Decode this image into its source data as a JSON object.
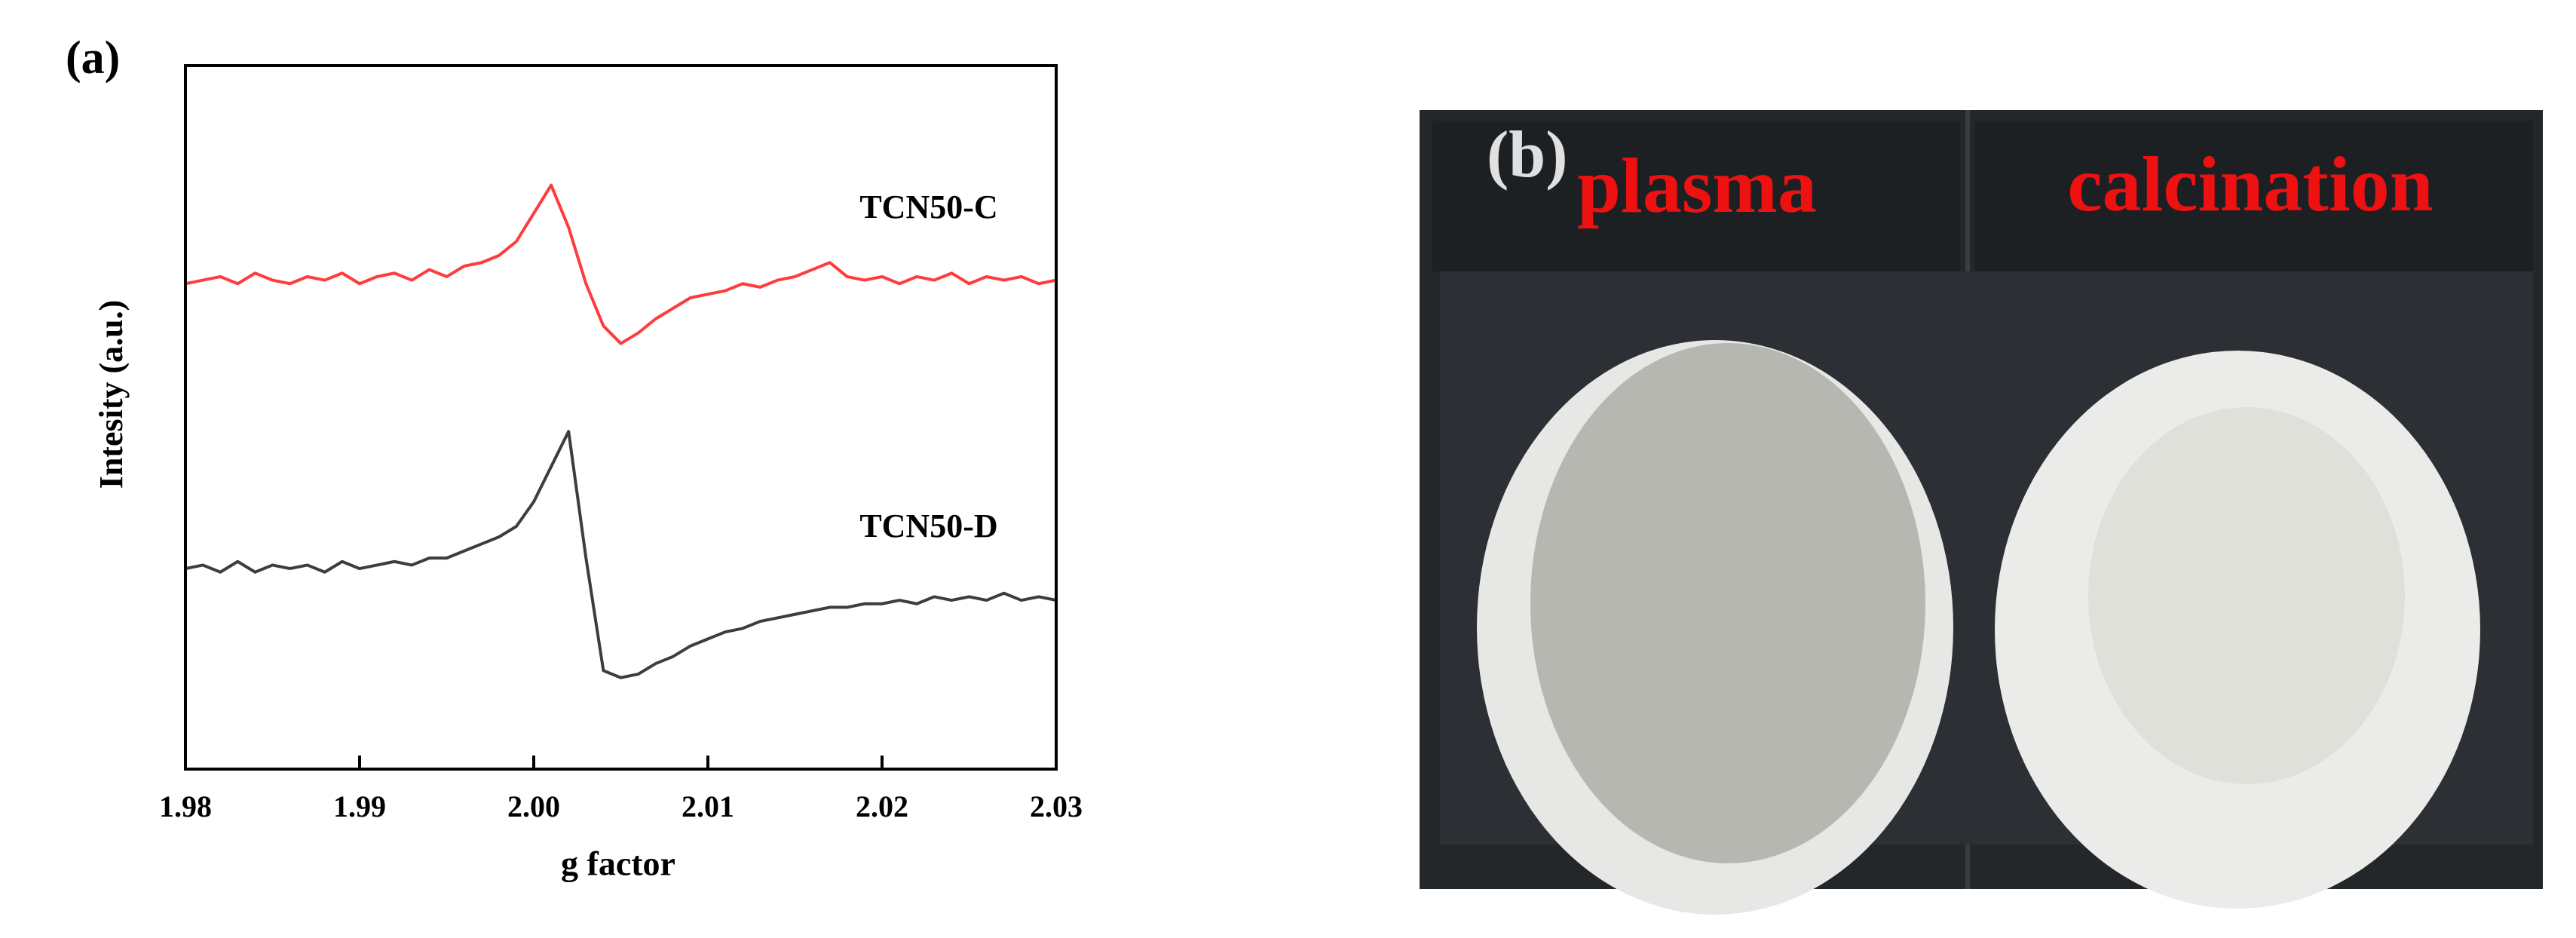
{
  "chart_data": {
    "type": "line",
    "panel_label": "(a)",
    "xlabel": "g factor",
    "ylabel": "Intesity (a.u.)",
    "x": [
      1.98,
      1.981,
      1.982,
      1.983,
      1.984,
      1.985,
      1.986,
      1.987,
      1.988,
      1.989,
      1.99,
      1.991,
      1.992,
      1.993,
      1.994,
      1.995,
      1.996,
      1.997,
      1.998,
      1.999,
      2.0,
      2.001,
      2.002,
      2.003,
      2.004,
      2.005,
      2.006,
      2.007,
      2.008,
      2.009,
      2.01,
      2.011,
      2.012,
      2.013,
      2.014,
      2.015,
      2.016,
      2.017,
      2.018,
      2.019,
      2.02,
      2.021,
      2.022,
      2.023,
      2.024,
      2.025,
      2.026,
      2.027,
      2.028,
      2.029,
      2.03
    ],
    "series": [
      {
        "name": "TCN50-C",
        "color": "#ff3b3b",
        "values": [
          6.9,
          6.95,
          7.0,
          6.9,
          7.05,
          6.95,
          6.9,
          7.0,
          6.95,
          7.05,
          6.9,
          7.0,
          7.05,
          6.95,
          7.1,
          7.0,
          7.15,
          7.2,
          7.3,
          7.5,
          7.9,
          8.3,
          7.7,
          6.9,
          6.3,
          6.05,
          6.2,
          6.4,
          6.55,
          6.7,
          6.75,
          6.8,
          6.9,
          6.85,
          6.95,
          7.0,
          7.1,
          7.2,
          7.0,
          6.95,
          7.0,
          6.9,
          7.0,
          6.95,
          7.05,
          6.9,
          7.0,
          6.95,
          7.0,
          6.9,
          6.95
        ]
      },
      {
        "name": "TCN50-D",
        "color": "#3d3d3d",
        "values": [
          2.85,
          2.9,
          2.8,
          2.95,
          2.8,
          2.9,
          2.85,
          2.9,
          2.8,
          2.95,
          2.85,
          2.9,
          2.95,
          2.9,
          3.0,
          3.0,
          3.1,
          3.2,
          3.3,
          3.45,
          3.8,
          4.3,
          4.8,
          3.0,
          1.4,
          1.3,
          1.35,
          1.5,
          1.6,
          1.75,
          1.85,
          1.95,
          2.0,
          2.1,
          2.15,
          2.2,
          2.25,
          2.3,
          2.3,
          2.35,
          2.35,
          2.4,
          2.35,
          2.45,
          2.4,
          2.45,
          2.4,
          2.5,
          2.4,
          2.45,
          2.4
        ]
      }
    ],
    "xlim": [
      1.98,
      2.03
    ],
    "xticks": [
      1.98,
      1.99,
      {
        "value": 2.0,
        "label": "2.00"
      },
      2.01,
      2.02,
      2.03
    ],
    "ylim": [
      0,
      10
    ]
  },
  "photo": {
    "panel_label": "(b)",
    "left_label": "plasma",
    "right_label": "calcination"
  }
}
